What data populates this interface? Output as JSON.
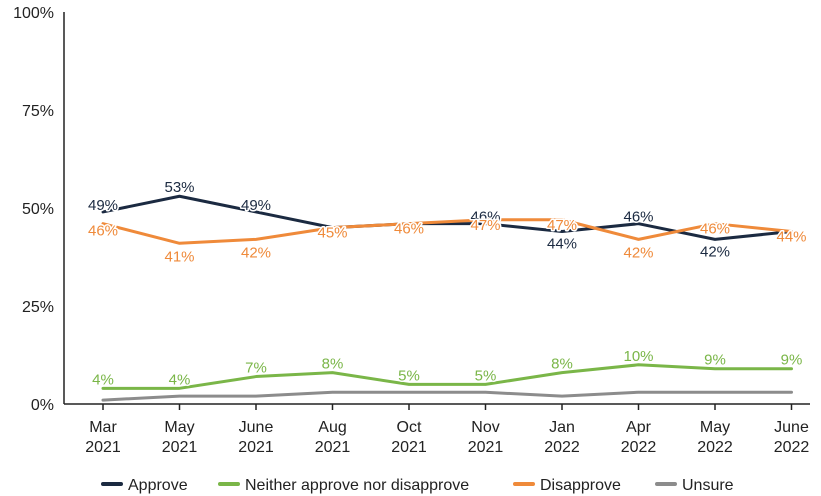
{
  "chart_data": {
    "type": "line",
    "title": "",
    "xlabel": "",
    "ylabel": "",
    "ylim": [
      0,
      100
    ],
    "yticks": [
      "0%",
      "25%",
      "50%",
      "75%",
      "100%"
    ],
    "ytick_values": [
      0,
      25,
      50,
      75,
      100
    ],
    "categories": [
      [
        "Mar",
        "2021"
      ],
      [
        "May",
        "2021"
      ],
      [
        "June",
        "2021"
      ],
      [
        "Aug",
        "2021"
      ],
      [
        "Oct",
        "2021"
      ],
      [
        "Nov",
        "2021"
      ],
      [
        "Jan",
        "2022"
      ],
      [
        "Apr",
        "2022"
      ],
      [
        "May",
        "2022"
      ],
      [
        "June",
        "2022"
      ]
    ],
    "grid": false,
    "legend_position": "bottom",
    "series": [
      {
        "name": "Approve",
        "color": "#1b2a41",
        "values": [
          49,
          53,
          49,
          45,
          46,
          46,
          44,
          46,
          42,
          44
        ],
        "labels": [
          "49%",
          "53%",
          "49%",
          "",
          "",
          "46%",
          "44%",
          "46%",
          "42%",
          ""
        ]
      },
      {
        "name": "Neither approve nor disapprove",
        "color": "#7ab648",
        "values": [
          4,
          4,
          7,
          8,
          5,
          5,
          8,
          10,
          9,
          9
        ],
        "labels": [
          "4%",
          "4%",
          "7%",
          "8%",
          "5%",
          "5%",
          "8%",
          "10%",
          "9%",
          "9%"
        ]
      },
      {
        "name": "Disapprove",
        "color": "#ef8a3a",
        "values": [
          46,
          41,
          42,
          45,
          46,
          47,
          47,
          42,
          46,
          44
        ],
        "labels": [
          "46%",
          "41%",
          "42%",
          "45%",
          "46%",
          "47%",
          "47%",
          "42%",
          "46%",
          "44%"
        ]
      },
      {
        "name": "Unsure",
        "color": "#8c8c8c",
        "values": [
          1,
          2,
          2,
          3,
          3,
          3,
          2,
          3,
          3,
          3
        ],
        "labels": [
          "",
          "",
          "",
          "",
          "",
          "",
          "",
          "",
          "",
          ""
        ]
      }
    ]
  }
}
